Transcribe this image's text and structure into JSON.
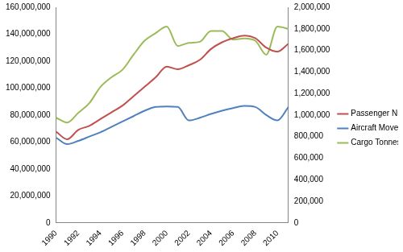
{
  "chart_data": {
    "type": "line",
    "categories": [
      "1990",
      null,
      "1992",
      null,
      "1994",
      null,
      "1996",
      null,
      "1998",
      null,
      "2000",
      null,
      "2002",
      null,
      "2004",
      null,
      "2006",
      null,
      "2008",
      null,
      "2010",
      null
    ],
    "series": [
      {
        "name": "Passenger Numbers",
        "color": "#c0504d",
        "values": [
          67700000,
          62000000,
          69000000,
          72000000,
          77000000,
          82000000,
          87000000,
          94000000,
          101000000,
          108000000,
          116000000,
          114000000,
          117000000,
          121000000,
          129000000,
          134000000,
          137000000,
          139000000,
          137000000,
          130000000,
          127000000,
          133000000
        ]
      },
      {
        "name": "Aircraft Movements",
        "color": "#4f81bd",
        "axis": "y2",
        "values": [
          790000,
          730000,
          760000,
          800000,
          840000,
          890000,
          940000,
          990000,
          1040000,
          1075000,
          1080000,
          1075000,
          950000,
          975000,
          1010000,
          1040000,
          1065000,
          1085000,
          1075000,
          1000000,
          950000,
          1075000
        ]
      },
      {
        "name": "Cargo Tonnes",
        "color": "#9bbb59",
        "axis": "y2",
        "values": [
          975000,
          930000,
          1020000,
          1110000,
          1260000,
          1350000,
          1420000,
          1560000,
          1690000,
          1760000,
          1820000,
          1640000,
          1670000,
          1680000,
          1780000,
          1780000,
          1700000,
          1710000,
          1690000,
          1560000,
          1820000,
          1800000
        ]
      }
    ],
    "ylim": [
      0,
      160000000
    ],
    "yticks": [
      0,
      {
        "value": 20000000,
        "label": "20,000,000"
      },
      {
        "value": 40000000,
        "label": "40,000,000"
      },
      {
        "value": 60000000,
        "label": "60,000,000"
      },
      {
        "value": 80000000,
        "label": "80,000,000"
      },
      {
        "value": 100000000,
        "label": "100,000,000"
      },
      {
        "value": 120000000,
        "label": "120,000,000"
      },
      {
        "value": 140000000,
        "label": "140,000,000"
      },
      {
        "value": 160000000,
        "label": "160,000,000"
      }
    ],
    "y2lim": [
      0,
      2000000
    ],
    "y2ticks": [
      0,
      {
        "value": 200000,
        "label": "200,000"
      },
      {
        "value": 400000,
        "label": "400,000"
      },
      {
        "value": 600000,
        "label": "600,000"
      },
      {
        "value": 800000,
        "label": "800,000"
      },
      {
        "value": 1000000,
        "label": "1,000,000"
      },
      {
        "value": 1200000,
        "label": "1,200,000"
      },
      {
        "value": 1400000,
        "label": "1,400,000"
      },
      {
        "value": 1600000,
        "label": "1,600,000"
      },
      {
        "value": 1800000,
        "label": "1,800,000"
      },
      {
        "value": 2000000,
        "label": "2,000,000"
      }
    ],
    "grid": false,
    "legend": "right"
  }
}
